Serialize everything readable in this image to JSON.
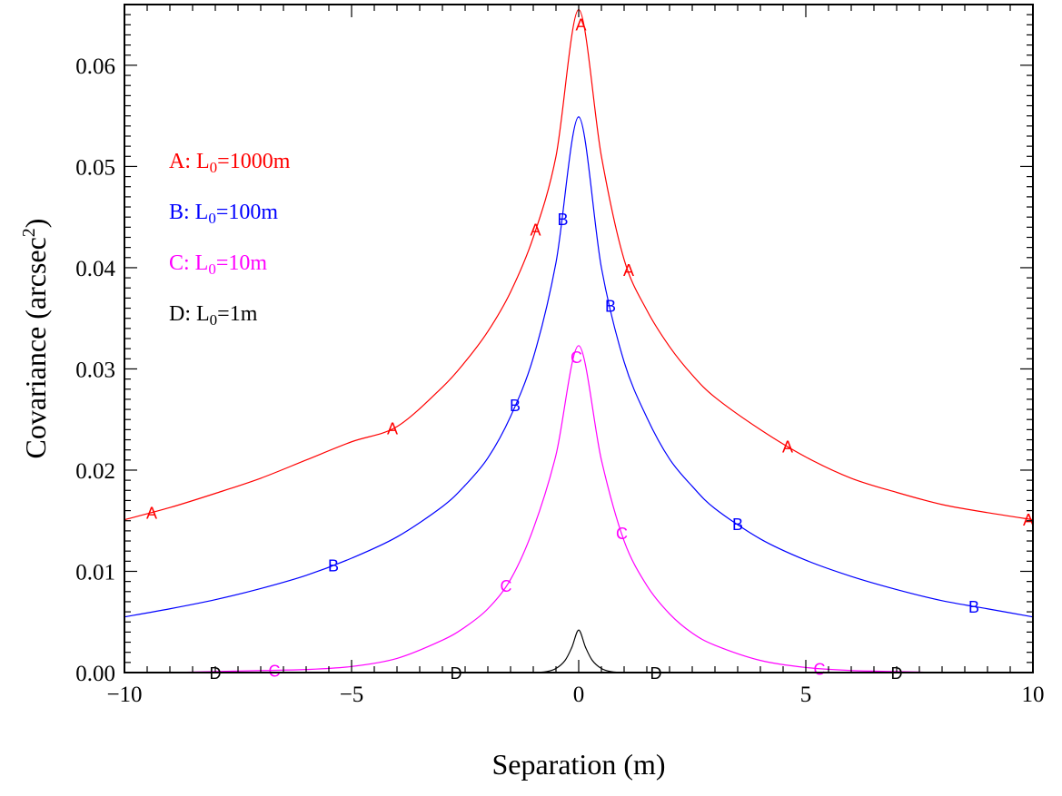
{
  "chart_data": {
    "type": "line",
    "title": "",
    "xlabel": "Separation (m)",
    "ylabel_main": "Covariance (arcsec",
    "ylabel_sup": "2",
    "ylabel_end": ")",
    "xlim": [
      -10,
      10
    ],
    "ylim": [
      0,
      0.066
    ],
    "x_ticks": [
      -10,
      -5,
      0,
      5,
      10
    ],
    "x_tick_labels": [
      "−10",
      "−5",
      "0",
      "5",
      "10"
    ],
    "y_ticks": [
      0,
      0.01,
      0.02,
      0.03,
      0.04,
      0.05,
      0.06
    ],
    "y_tick_labels": [
      "0.00",
      "0.01",
      "0.02",
      "0.03",
      "0.04",
      "0.05",
      "0.06"
    ],
    "grid": false,
    "legend_position": "upper-left",
    "series": [
      {
        "name": "A: L0=1000m",
        "legend_prefix": "A: L",
        "legend_sub": "0",
        "legend_suffix": "=1000m",
        "marker": "A",
        "color": "#ff0000",
        "peak": 0.0655,
        "x": [
          -10,
          -9,
          -8,
          -7,
          -6,
          -5,
          -4,
          -3,
          -2.5,
          -2,
          -1.5,
          -1,
          -0.5,
          0,
          0.5,
          1,
          1.5,
          2,
          2.5,
          3,
          4,
          5,
          6,
          7,
          8,
          9,
          10
        ],
        "y": [
          0.0151,
          0.0163,
          0.0177,
          0.0192,
          0.021,
          0.0228,
          0.0243,
          0.0282,
          0.0307,
          0.0337,
          0.0376,
          0.043,
          0.051,
          0.0655,
          0.051,
          0.0408,
          0.0358,
          0.0322,
          0.0294,
          0.0272,
          0.024,
          0.0213,
          0.0192,
          0.0178,
          0.0166,
          0.0158,
          0.0151
        ],
        "marker_x": [
          -9.4,
          -4.1,
          -0.95,
          0.05,
          1.1,
          4.6,
          9.9
        ]
      },
      {
        "name": "B: L0=100m",
        "legend_prefix": "B: L",
        "legend_sub": "0",
        "legend_suffix": "=100m",
        "marker": "B",
        "color": "#0000ff",
        "peak": 0.0549,
        "x": [
          -10,
          -9,
          -8,
          -7,
          -6,
          -5,
          -4,
          -3,
          -2.5,
          -2,
          -1.5,
          -1,
          -0.5,
          0,
          0.5,
          1,
          1.5,
          2,
          2.5,
          3,
          4,
          5,
          6,
          7,
          8,
          9,
          10
        ],
        "y": [
          0.0055,
          0.0063,
          0.0072,
          0.0083,
          0.0096,
          0.0113,
          0.0134,
          0.0164,
          0.0185,
          0.0212,
          0.0253,
          0.0311,
          0.0405,
          0.0549,
          0.04,
          0.0307,
          0.0252,
          0.0211,
          0.0184,
          0.0162,
          0.0132,
          0.0111,
          0.0095,
          0.0082,
          0.0071,
          0.0063,
          0.0055
        ],
        "marker_x": [
          -5.4,
          -1.4,
          -0.35,
          0.7,
          3.5,
          8.7
        ]
      },
      {
        "name": "C: L0=10m",
        "legend_prefix": "C: L",
        "legend_sub": "0",
        "legend_suffix": "=10m",
        "marker": "C",
        "color": "#ff00ff",
        "peak": 0.0323,
        "x": [
          -10,
          -9,
          -8,
          -7,
          -6,
          -5,
          -4,
          -3,
          -2.5,
          -2,
          -1.5,
          -1,
          -0.5,
          0,
          0.5,
          1,
          1.5,
          2,
          2.5,
          3,
          4,
          5,
          6,
          7,
          8,
          9,
          10
        ],
        "y": [
          0.0,
          0.0,
          0.0001,
          0.0002,
          0.0003,
          0.0006,
          0.0014,
          0.0032,
          0.0045,
          0.0063,
          0.0092,
          0.0142,
          0.0215,
          0.0323,
          0.021,
          0.013,
          0.0086,
          0.0058,
          0.0039,
          0.0027,
          0.0012,
          0.0005,
          0.0002,
          0.0001,
          0.0,
          0.0,
          0.0
        ],
        "marker_x": [
          -6.7,
          -1.6,
          -0.05,
          0.95,
          5.3
        ]
      },
      {
        "name": "D: L0=1m",
        "legend_prefix": "D: L",
        "legend_sub": "0",
        "legend_suffix": "=1m",
        "marker": "D",
        "color": "#000000",
        "peak": 0.0042,
        "x": [
          -10,
          -2,
          -1,
          -0.7,
          -0.5,
          -0.3,
          -0.15,
          0,
          0.15,
          0.3,
          0.5,
          0.7,
          1,
          2,
          10
        ],
        "y": [
          0.0,
          0.0,
          0.0,
          0.0001,
          0.0004,
          0.0012,
          0.0025,
          0.0042,
          0.0025,
          0.0012,
          0.0004,
          0.0001,
          0.0,
          0.0,
          0.0
        ],
        "marker_x": [
          -8.0,
          -2.7,
          1.7,
          7.0
        ]
      }
    ]
  }
}
